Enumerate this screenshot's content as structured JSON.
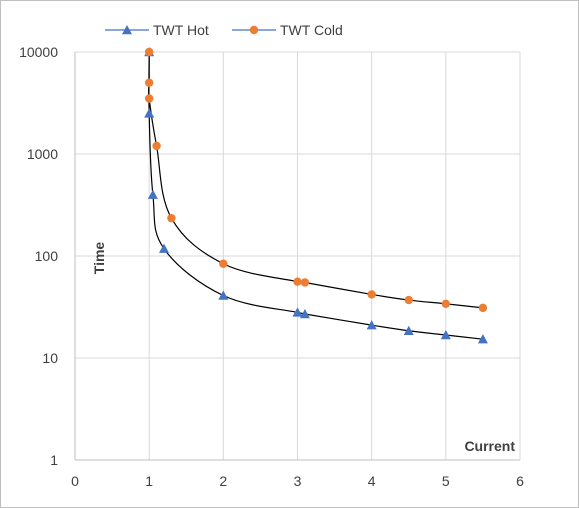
{
  "chart_data": {
    "type": "scatter",
    "title": "",
    "xlabel": "Current",
    "ylabel": "Time",
    "xlim": [
      0,
      6
    ],
    "ylim": [
      1,
      10000
    ],
    "yscale": "log",
    "x_ticks": [
      "0",
      "1",
      "2",
      "3",
      "4",
      "5",
      "6"
    ],
    "y_ticks": [
      "1",
      "10",
      "100",
      "1000",
      "10000"
    ],
    "grid": "major gridlines on both axes",
    "legend_position": "top",
    "lines": "smooth black connecting curves",
    "series": [
      {
        "name": "TWT Hot",
        "color": "#4472C4",
        "marker": "triangle",
        "points": [
          {
            "x": 1.0,
            "y": 10000
          },
          {
            "x": 1.0,
            "y": 2500
          },
          {
            "x": 1.05,
            "y": 400
          },
          {
            "x": 1.2,
            "y": 118
          },
          {
            "x": 2.0,
            "y": 41
          },
          {
            "x": 3.0,
            "y": 28
          },
          {
            "x": 3.1,
            "y": 27
          },
          {
            "x": 4.0,
            "y": 21
          },
          {
            "x": 4.5,
            "y": 18.5
          },
          {
            "x": 5.0,
            "y": 16.8
          },
          {
            "x": 5.5,
            "y": 15.3
          }
        ]
      },
      {
        "name": "TWT Cold",
        "color": "#ED7D31",
        "marker": "circle",
        "points": [
          {
            "x": 1.0,
            "y": 10000
          },
          {
            "x": 1.0,
            "y": 5000
          },
          {
            "x": 1.0,
            "y": 3500
          },
          {
            "x": 1.1,
            "y": 1200
          },
          {
            "x": 1.3,
            "y": 235
          },
          {
            "x": 2.0,
            "y": 84
          },
          {
            "x": 3.0,
            "y": 56
          },
          {
            "x": 3.1,
            "y": 55
          },
          {
            "x": 4.0,
            "y": 42
          },
          {
            "x": 4.5,
            "y": 37
          },
          {
            "x": 5.0,
            "y": 34
          },
          {
            "x": 5.5,
            "y": 31
          }
        ]
      }
    ]
  }
}
